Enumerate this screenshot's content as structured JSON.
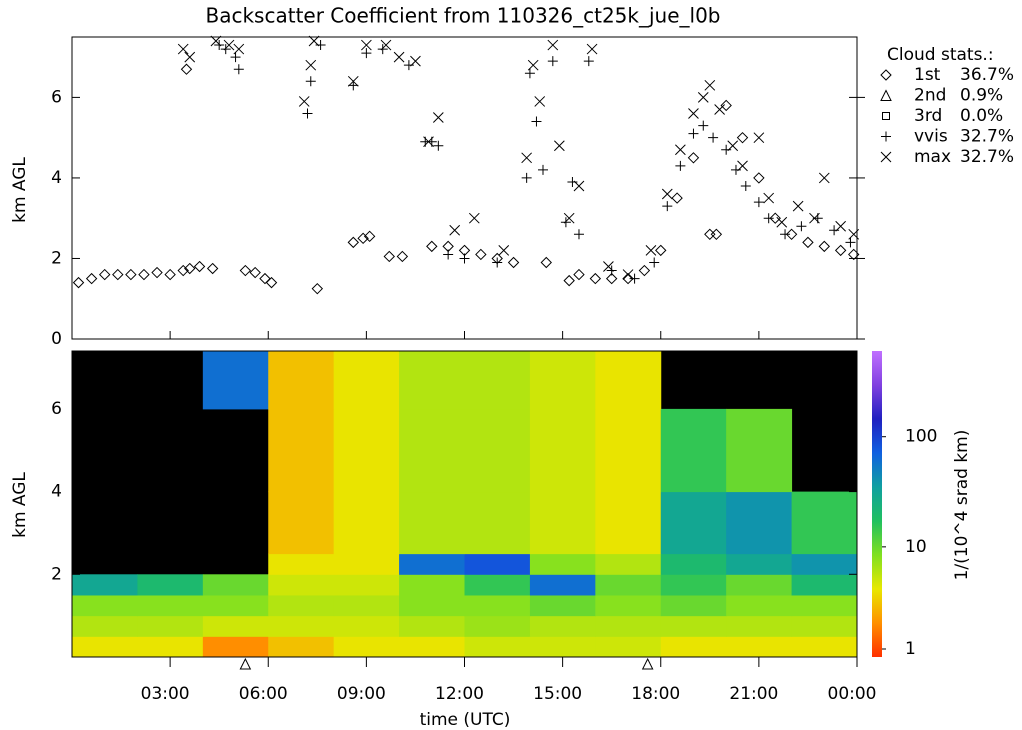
{
  "chart_data": [
    {
      "type": "scatter",
      "title": "Backscatter Coefficient from 110326_ct25k_jue_l0b",
      "y_label": "km AGL",
      "xlim": [
        0,
        24
      ],
      "ylim": [
        0,
        7.5
      ],
      "yticks": [
        0,
        2,
        4,
        6
      ],
      "legend_title": "Cloud stats.:",
      "series": [
        {
          "name": "1st",
          "percent": "36.7%",
          "marker": "diamond",
          "color": "#000000",
          "x": [
            0.2,
            0.6,
            1.0,
            1.4,
            1.8,
            2.2,
            2.6,
            3.0,
            3.4,
            3.5,
            3.6,
            3.9,
            4.3,
            5.3,
            5.6,
            5.9,
            6.1,
            7.5,
            8.6,
            8.9,
            9.1,
            9.7,
            10.1,
            11.0,
            11.5,
            12.0,
            12.5,
            13.0,
            13.5,
            14.5,
            15.2,
            15.5,
            16.0,
            16.5,
            17.0,
            17.5,
            18.0,
            18.5,
            19.0,
            19.5,
            19.7,
            20.0,
            20.5,
            21.0,
            21.5,
            22.0,
            22.5,
            23.0,
            23.5,
            23.9
          ],
          "values": [
            1.4,
            1.5,
            1.6,
            1.6,
            1.6,
            1.6,
            1.65,
            1.6,
            1.7,
            6.7,
            1.75,
            1.8,
            1.75,
            1.7,
            1.65,
            1.5,
            1.4,
            1.25,
            2.4,
            2.5,
            2.55,
            2.05,
            2.05,
            2.3,
            2.3,
            2.2,
            2.1,
            2.0,
            1.9,
            1.9,
            1.45,
            1.6,
            1.5,
            1.5,
            1.5,
            1.7,
            2.2,
            3.5,
            4.5,
            2.6,
            2.6,
            5.8,
            5.0,
            4.0,
            3.0,
            2.6,
            2.4,
            2.3,
            2.2,
            2.1
          ]
        },
        {
          "name": "2nd",
          "percent": "0.9%",
          "marker": "triangle",
          "color": "#000000",
          "x": [],
          "values": []
        },
        {
          "name": "3rd",
          "percent": "0.0%",
          "marker": "square",
          "color": "#000000",
          "x": [],
          "values": []
        },
        {
          "name": "vvis",
          "percent": "32.7%",
          "marker": "plus",
          "color": "#000000",
          "x": [
            4.5,
            4.7,
            5.0,
            5.1,
            7.2,
            7.3,
            7.6,
            8.6,
            9.0,
            9.5,
            10.3,
            10.8,
            11.0,
            11.2,
            11.5,
            12.0,
            13.0,
            13.9,
            14.0,
            14.2,
            14.4,
            14.7,
            15.1,
            15.3,
            15.5,
            15.8,
            16.5,
            17.2,
            17.8,
            18.2,
            18.6,
            19.0,
            19.3,
            19.6,
            20.0,
            20.3,
            20.6,
            21.0,
            21.3,
            21.8,
            22.3,
            22.8,
            23.3,
            23.8
          ],
          "values": [
            7.3,
            7.2,
            7.0,
            6.7,
            5.6,
            6.4,
            7.3,
            6.3,
            7.1,
            7.2,
            6.8,
            4.9,
            4.9,
            4.8,
            2.1,
            2.0,
            1.9,
            4.0,
            6.6,
            5.4,
            4.2,
            6.9,
            2.9,
            3.9,
            2.6,
            6.9,
            1.7,
            1.5,
            1.9,
            3.3,
            4.3,
            5.1,
            5.3,
            5.0,
            4.7,
            4.2,
            3.8,
            3.4,
            3.0,
            2.6,
            2.8,
            3.0,
            2.7,
            2.4
          ]
        },
        {
          "name": "max",
          "percent": "32.7%",
          "marker": "cross",
          "color": "#000000",
          "x": [
            3.4,
            3.6,
            4.4,
            4.8,
            5.1,
            7.1,
            7.3,
            7.4,
            8.6,
            9.0,
            9.6,
            10.0,
            10.5,
            10.9,
            11.2,
            11.7,
            12.3,
            13.2,
            13.9,
            14.1,
            14.3,
            14.7,
            14.9,
            15.2,
            15.5,
            15.9,
            16.4,
            17.0,
            17.7,
            18.2,
            18.6,
            19.0,
            19.3,
            19.5,
            19.8,
            20.2,
            20.5,
            21.0,
            21.3,
            21.7,
            22.2,
            22.7,
            23.0,
            23.5,
            23.9
          ],
          "values": [
            7.2,
            7.0,
            7.4,
            7.3,
            7.2,
            5.9,
            6.8,
            7.4,
            6.4,
            7.3,
            7.3,
            7.0,
            6.9,
            4.9,
            5.5,
            2.7,
            3.0,
            2.2,
            4.5,
            6.8,
            5.9,
            7.3,
            4.8,
            3.0,
            3.8,
            7.2,
            1.8,
            1.6,
            2.2,
            3.6,
            4.7,
            5.6,
            6.0,
            6.3,
            5.7,
            4.8,
            4.3,
            5.0,
            3.5,
            2.9,
            3.3,
            3.0,
            4.0,
            2.8,
            2.6
          ]
        }
      ]
    },
    {
      "type": "heatmap",
      "x_label": "time (UTC)",
      "y_label": "km AGL",
      "colorbar_label": "1/(10^4 srad km)",
      "xlim": [
        0,
        24
      ],
      "ylim": [
        0,
        7.4
      ],
      "xticks": [
        {
          "value": 3,
          "label": "03:00"
        },
        {
          "value": 6,
          "label": "06:00"
        },
        {
          "value": 9,
          "label": "09:00"
        },
        {
          "value": 12,
          "label": "12:00"
        },
        {
          "value": 15,
          "label": "15:00"
        },
        {
          "value": 18,
          "label": "18:00"
        },
        {
          "value": 21,
          "label": "21:00"
        },
        {
          "value": 24,
          "label": "00:00"
        }
      ],
      "yticks": [
        2,
        4,
        6
      ],
      "x_bins": [
        0,
        2,
        4,
        6,
        8,
        10,
        12,
        14,
        16,
        18,
        20,
        22,
        24
      ],
      "y_bins": [
        0,
        0.5,
        1,
        1.5,
        2,
        2.5,
        4,
        6,
        7.4
      ],
      "values": [
        [
          4,
          4,
          2,
          3,
          4,
          4,
          5,
          5,
          5,
          4,
          4,
          4
        ],
        [
          6,
          6,
          5,
          5,
          5,
          6,
          7,
          6,
          6,
          6,
          6,
          6
        ],
        [
          8,
          8,
          8,
          6,
          6,
          8,
          8,
          10,
          8,
          10,
          8,
          8
        ],
        [
          30,
          20,
          10,
          5,
          5,
          8,
          15,
          60,
          10,
          15,
          10,
          20
        ],
        [
          null,
          null,
          null,
          4,
          4,
          60,
          80,
          8,
          6,
          20,
          30,
          40
        ],
        [
          null,
          null,
          null,
          3,
          4,
          6,
          6,
          5,
          4,
          30,
          40,
          15
        ],
        [
          null,
          null,
          null,
          3,
          4,
          6,
          6,
          5,
          4,
          15,
          10,
          null
        ],
        [
          null,
          null,
          60,
          3,
          4,
          6,
          6,
          5,
          4,
          null,
          null,
          null
        ]
      ],
      "clim": [
        1,
        600
      ],
      "log_color": true,
      "colorbar_ticks": [
        1,
        10,
        100
      ],
      "colormap": [
        "#ff3000",
        "#ff9000",
        "#e8e800",
        "#80e020",
        "#20c060",
        "#10a0a0",
        "#1060e0",
        "#2020c0",
        "#8040e0",
        "#c070ff"
      ],
      "background": "#000000",
      "event_markers_x": [
        5.3,
        17.6
      ]
    }
  ]
}
